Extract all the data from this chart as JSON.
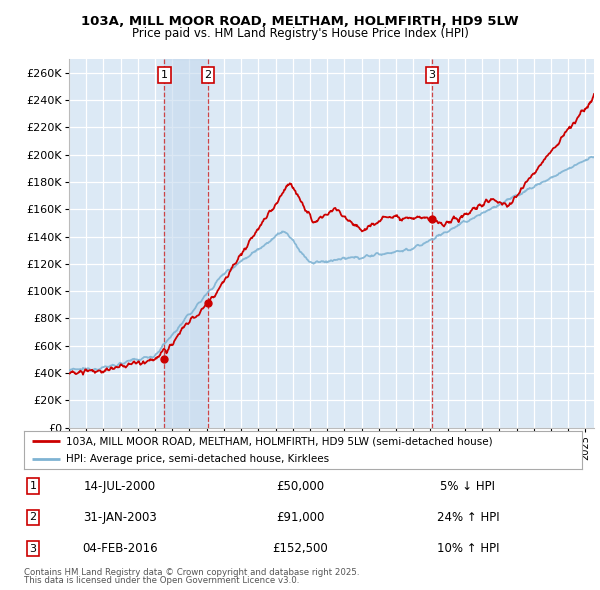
{
  "title1": "103A, MILL MOOR ROAD, MELTHAM, HOLMFIRTH, HD9 5LW",
  "title2": "Price paid vs. HM Land Registry's House Price Index (HPI)",
  "legend_line1": "103A, MILL MOOR ROAD, MELTHAM, HOLMFIRTH, HD9 5LW (semi-detached house)",
  "legend_line2": "HPI: Average price, semi-detached house, Kirklees",
  "footer1": "Contains HM Land Registry data © Crown copyright and database right 2025.",
  "footer2": "This data is licensed under the Open Government Licence v3.0.",
  "sale_points": [
    {
      "num": 1,
      "date": "14-JUL-2000",
      "price": 50000,
      "pct": "5%",
      "dir": "↓",
      "x_year": 2000.54
    },
    {
      "num": 2,
      "date": "31-JAN-2003",
      "price": 91000,
      "pct": "24%",
      "dir": "↑",
      "x_year": 2003.08
    },
    {
      "num": 3,
      "date": "04-FEB-2016",
      "price": 152500,
      "pct": "10%",
      "dir": "↑",
      "x_year": 2016.09
    }
  ],
  "background_color": "#ffffff",
  "plot_bg_color": "#dce9f5",
  "grid_color": "#ffffff",
  "line_color_red": "#cc0000",
  "line_color_blue": "#7fb3d3",
  "shade_color": "#c5d9ee",
  "ylim": [
    0,
    270000
  ],
  "xlim_start": 1995,
  "xlim_end": 2025.5,
  "yticks": [
    0,
    20000,
    40000,
    60000,
    80000,
    100000,
    120000,
    140000,
    160000,
    180000,
    200000,
    220000,
    240000,
    260000
  ]
}
